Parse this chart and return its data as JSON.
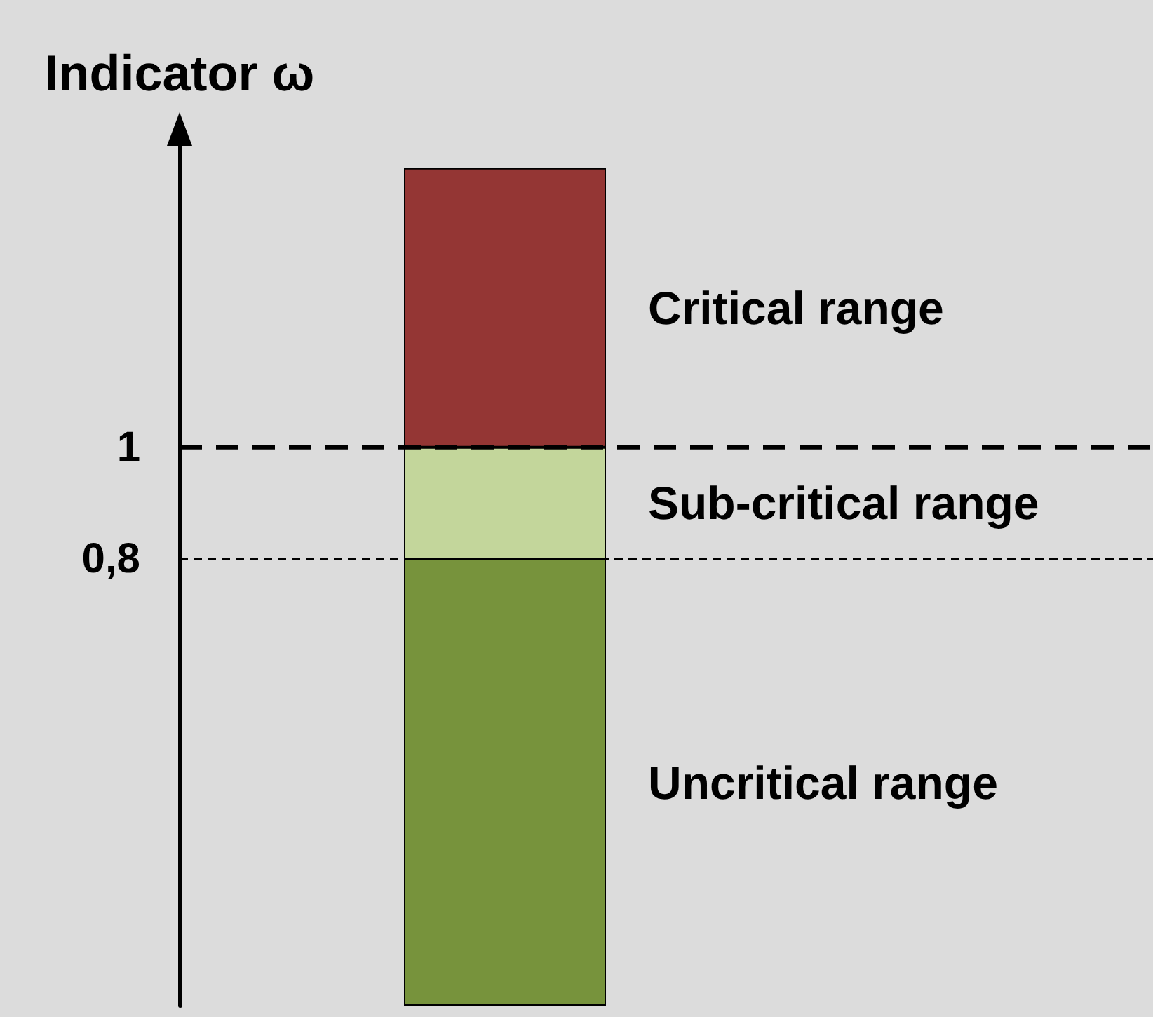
{
  "chart_data": {
    "type": "bar",
    "stacked": true,
    "categories": [
      null
    ],
    "ylabel": "Indicator ω",
    "series": [
      {
        "name": "Uncritical range",
        "color": "#77933c",
        "values": [
          0.8
        ]
      },
      {
        "name": "Sub-critical range",
        "color": "#c3d69b",
        "values": [
          0.2
        ]
      },
      {
        "name": "Critical range",
        "color": "#943634",
        "values": [
          0.5
        ]
      }
    ],
    "ylim": [
      0,
      1.55
    ],
    "yticks": [
      {
        "value": 0.8,
        "label": "0,8"
      },
      1
    ],
    "ref_lines": [
      {
        "axis": "y",
        "value": 1,
        "line_style": "dashed"
      },
      {
        "axis": "y",
        "value": 0.8,
        "line_style": "dotted"
      }
    ],
    "grid": false,
    "legend": false
  }
}
